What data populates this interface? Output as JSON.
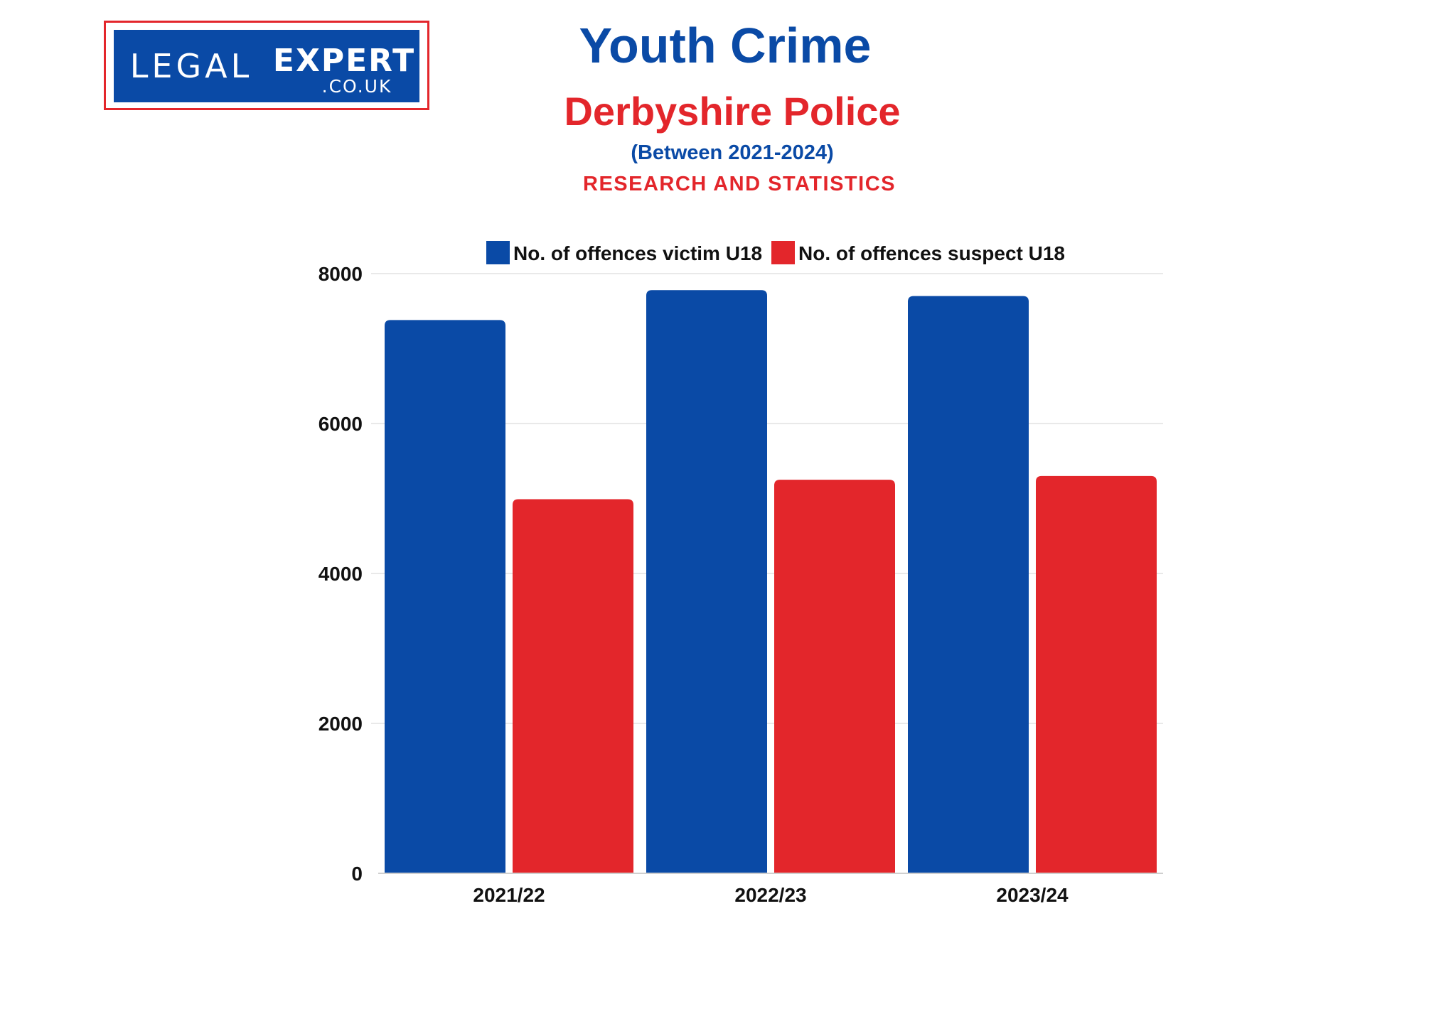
{
  "logo": {
    "brand_left": "LEGAL",
    "brand_right": "EXPERT",
    "domain": ".CO.UK"
  },
  "header": {
    "title": "Youth Crime",
    "subtitle": "Derbyshire Police",
    "range": "(Between 2021-2024)",
    "tagline": "RESEARCH AND STATISTICS"
  },
  "colors": {
    "victim": "#0a4aa6",
    "suspect": "#e3262b",
    "grid": "#e2e2e2"
  },
  "chart_data": {
    "type": "bar",
    "categories": [
      "2021/22",
      "2022/23",
      "2023/24"
    ],
    "series": [
      {
        "name": "No. of offences victim U18",
        "values": [
          7380,
          7780,
          7700
        ]
      },
      {
        "name": "No. of offences suspect U18",
        "values": [
          4990,
          5250,
          5300
        ]
      }
    ],
    "ylim": [
      0,
      8000
    ],
    "yticks": [
      0,
      2000,
      4000,
      6000,
      8000
    ],
    "grid": true,
    "legend": "top"
  }
}
